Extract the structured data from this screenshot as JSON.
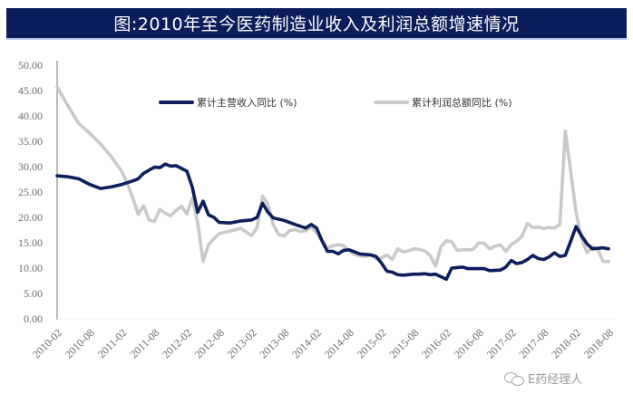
{
  "title": "图:2010年至今医药制造业收入及利润总额增速情况",
  "watermark": {
    "icon": "wechat-icon",
    "text": "E药经理人"
  },
  "colors": {
    "title_bg": "#0b1e5b",
    "revenue": "#0d1f5c",
    "profit": "#c9c9c9",
    "axis": "#8c8c8c"
  },
  "chart_data": {
    "type": "line",
    "title": "图:2010年至今医药制造业收入及利润总额增速情况",
    "xlabel": "",
    "ylabel": "",
    "ylim": [
      0,
      50
    ],
    "yticks": [
      "0.00",
      "5.00",
      "10.00",
      "15.00",
      "20.00",
      "25.00",
      "30.00",
      "35.00",
      "40.00",
      "45.00",
      "50.00"
    ],
    "xticks": [
      "2010-02",
      "2010-08",
      "2011-02",
      "2011-08",
      "2012-02",
      "2012-08",
      "2013-02",
      "2013-08",
      "2014-02",
      "2014-08",
      "2015-02",
      "2015-08",
      "2016-02",
      "2016-08",
      "2017-02",
      "2017-08",
      "2018-02",
      "2018-08"
    ],
    "grid": false,
    "legend_position": "top-inside",
    "x_month_index": [
      0,
      2,
      4,
      6,
      8,
      10,
      12,
      14,
      16,
      18,
      20,
      22,
      24,
      26,
      28,
      30,
      32,
      34,
      36,
      38,
      40,
      42,
      44,
      46,
      48,
      50,
      52,
      54,
      56,
      58,
      60,
      62,
      64,
      66,
      68,
      70,
      72,
      74,
      76,
      78,
      80,
      82,
      84,
      86,
      88,
      90,
      92,
      94,
      96,
      98,
      100,
      102
    ],
    "series": [
      {
        "name": "累计主营收入同比 (%)",
        "color": "#0d1f5c",
        "points": [
          [
            0,
            28.2
          ],
          [
            2,
            28.0
          ],
          [
            4,
            27.6
          ],
          [
            6,
            26.5
          ],
          [
            8,
            25.7
          ],
          [
            10,
            26.0
          ],
          [
            12,
            26.5
          ],
          [
            14,
            27.2
          ],
          [
            15,
            27.6
          ],
          [
            16,
            28.7
          ],
          [
            17,
            29.3
          ],
          [
            18,
            29.9
          ],
          [
            19,
            29.8
          ],
          [
            20,
            30.5
          ],
          [
            21,
            30.1
          ],
          [
            22,
            30.2
          ],
          [
            24,
            29.1
          ],
          [
            25,
            26.0
          ],
          [
            26,
            21.0
          ],
          [
            27,
            23.2
          ],
          [
            28,
            20.5
          ],
          [
            29,
            20.0
          ],
          [
            30,
            19.0
          ],
          [
            32,
            18.9
          ],
          [
            34,
            19.3
          ],
          [
            36,
            19.5
          ],
          [
            37,
            20.0
          ],
          [
            38,
            22.8
          ],
          [
            39,
            21.0
          ],
          [
            40,
            19.9
          ],
          [
            42,
            19.4
          ],
          [
            44,
            18.6
          ],
          [
            46,
            17.9
          ],
          [
            47,
            18.6
          ],
          [
            48,
            17.9
          ],
          [
            49,
            15.4
          ],
          [
            50,
            13.3
          ],
          [
            51,
            13.3
          ],
          [
            52,
            12.8
          ],
          [
            53,
            13.5
          ],
          [
            54,
            13.6
          ],
          [
            56,
            12.8
          ],
          [
            58,
            12.6
          ],
          [
            59,
            12.3
          ],
          [
            60,
            11.0
          ],
          [
            61,
            9.4
          ],
          [
            62,
            9.2
          ],
          [
            63,
            8.7
          ],
          [
            64,
            8.6
          ],
          [
            65,
            8.7
          ],
          [
            66,
            8.8
          ],
          [
            67,
            8.8
          ],
          [
            68,
            8.9
          ],
          [
            69,
            8.7
          ],
          [
            70,
            8.8
          ],
          [
            71,
            8.3
          ],
          [
            72,
            7.8
          ],
          [
            73,
            10.0
          ],
          [
            74,
            10.1
          ],
          [
            75,
            10.2
          ],
          [
            76,
            9.9
          ],
          [
            78,
            9.9
          ],
          [
            79,
            9.9
          ],
          [
            80,
            9.5
          ],
          [
            82,
            9.6
          ],
          [
            83,
            10.2
          ],
          [
            84,
            11.5
          ],
          [
            85,
            10.9
          ],
          [
            86,
            11.1
          ],
          [
            87,
            11.7
          ],
          [
            88,
            12.5
          ],
          [
            89,
            11.9
          ],
          [
            90,
            11.7
          ],
          [
            91,
            12.2
          ],
          [
            92,
            13.0
          ],
          [
            93,
            12.3
          ],
          [
            94,
            12.5
          ],
          [
            95,
            15.3
          ],
          [
            96,
            18.2
          ],
          [
            97,
            16.4
          ],
          [
            98,
            14.8
          ],
          [
            99,
            13.8
          ],
          [
            100,
            13.9
          ],
          [
            101,
            14.0
          ],
          [
            102,
            13.8
          ]
        ]
      },
      {
        "name": "累计利润总额同比 (%)",
        "color": "#c9c9c9",
        "points": [
          [
            0,
            45.7
          ],
          [
            2,
            42.0
          ],
          [
            4,
            38.5
          ],
          [
            6,
            36.6
          ],
          [
            8,
            34.5
          ],
          [
            10,
            32.0
          ],
          [
            12,
            29.0
          ],
          [
            13,
            26.6
          ],
          [
            14,
            23.8
          ],
          [
            15,
            20.6
          ],
          [
            16,
            22.3
          ],
          [
            17,
            19.5
          ],
          [
            18,
            19.2
          ],
          [
            19,
            21.6
          ],
          [
            20,
            20.8
          ],
          [
            21,
            20.3
          ],
          [
            22,
            21.4
          ],
          [
            23,
            22.2
          ],
          [
            24,
            20.7
          ],
          [
            25,
            23.8
          ],
          [
            26,
            19.0
          ],
          [
            27,
            11.3
          ],
          [
            28,
            14.6
          ],
          [
            29,
            15.8
          ],
          [
            30,
            16.8
          ],
          [
            32,
            17.3
          ],
          [
            34,
            17.8
          ],
          [
            35,
            17.1
          ],
          [
            36,
            16.4
          ],
          [
            37,
            18.0
          ],
          [
            38,
            24.2
          ],
          [
            39,
            22.6
          ],
          [
            40,
            18.5
          ],
          [
            41,
            16.6
          ],
          [
            42,
            16.3
          ],
          [
            43,
            17.4
          ],
          [
            44,
            17.6
          ],
          [
            45,
            17.2
          ],
          [
            46,
            17.4
          ],
          [
            47,
            18.1
          ],
          [
            48,
            17.0
          ],
          [
            49,
            15.3
          ],
          [
            50,
            14.0
          ],
          [
            51,
            14.4
          ],
          [
            52,
            14.6
          ],
          [
            53,
            14.4
          ],
          [
            54,
            13.5
          ],
          [
            55,
            12.7
          ],
          [
            56,
            12.4
          ],
          [
            57,
            12.3
          ],
          [
            58,
            12.6
          ],
          [
            59,
            11.8
          ],
          [
            60,
            12.0
          ],
          [
            61,
            12.6
          ],
          [
            62,
            11.7
          ],
          [
            63,
            13.8
          ],
          [
            64,
            13.2
          ],
          [
            65,
            13.4
          ],
          [
            66,
            13.8
          ],
          [
            67,
            13.7
          ],
          [
            68,
            13.4
          ],
          [
            69,
            12.5
          ],
          [
            70,
            10.4
          ],
          [
            71,
            14.2
          ],
          [
            72,
            15.4
          ],
          [
            73,
            15.2
          ],
          [
            74,
            13.5
          ],
          [
            75,
            13.6
          ],
          [
            76,
            13.6
          ],
          [
            77,
            13.7
          ],
          [
            78,
            15.0
          ],
          [
            79,
            14.9
          ],
          [
            80,
            13.8
          ],
          [
            81,
            14.3
          ],
          [
            82,
            14.6
          ],
          [
            83,
            13.3
          ],
          [
            84,
            14.6
          ],
          [
            85,
            15.3
          ],
          [
            86,
            16.3
          ],
          [
            87,
            18.8
          ],
          [
            88,
            18.0
          ],
          [
            89,
            18.1
          ],
          [
            90,
            17.8
          ],
          [
            91,
            18.0
          ],
          [
            92,
            17.9
          ],
          [
            93,
            18.6
          ],
          [
            94,
            37.0
          ],
          [
            95,
            29.0
          ],
          [
            96,
            21.0
          ],
          [
            97,
            15.9
          ],
          [
            98,
            13.0
          ],
          [
            99,
            14.2
          ],
          [
            100,
            13.7
          ],
          [
            101,
            11.3
          ],
          [
            102,
            11.3
          ]
        ]
      }
    ]
  },
  "legend": {
    "items": [
      {
        "label": "累计主营收入同比 (%)",
        "color": "#0d1f5c"
      },
      {
        "label": "累计利润总额同比 (%)",
        "color": "#c9c9c9"
      }
    ]
  }
}
